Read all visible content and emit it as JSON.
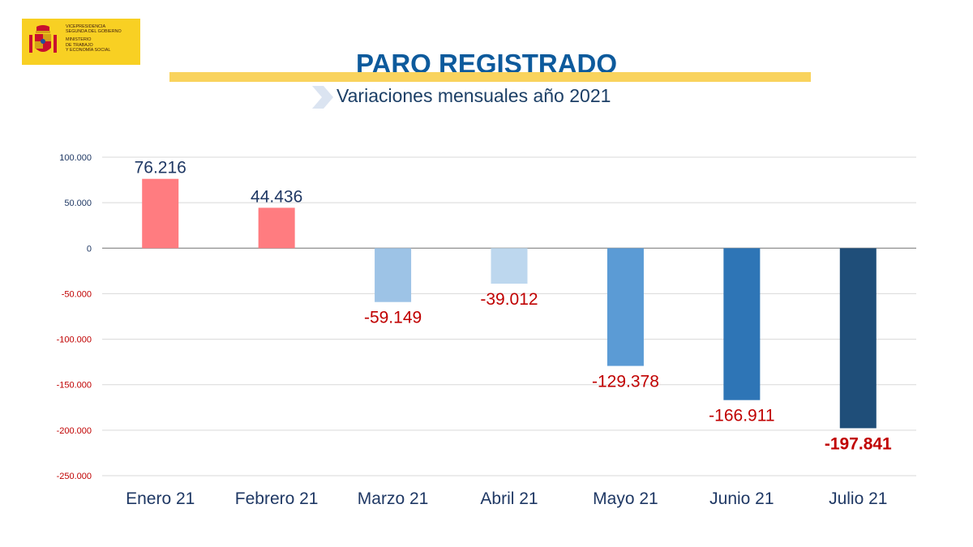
{
  "logo": {
    "lines_1": [
      "Vicepresidencia",
      "segunda del gobierno"
    ],
    "lines_2": [
      "Ministerio",
      "de trabajo",
      "y economía social"
    ]
  },
  "header": {
    "title": "PARO REGISTRADO",
    "subtitle": "Variaciones mensuales año 2021"
  },
  "colors": {
    "positive": "#ff7c80",
    "bars": [
      "#ff7c80",
      "#ff7c80",
      "#9dc3e6",
      "#bdd7ee",
      "#5b9bd5",
      "#2e75b6",
      "#1f4e79"
    ],
    "negative_text": "#c00000",
    "positive_text": "#1f3864",
    "axis_text": "#1f3864"
  },
  "chart_data": {
    "type": "bar",
    "title": "PARO REGISTRADO",
    "subtitle": "Variaciones mensuales año 2021",
    "categories": [
      "Enero 21",
      "Febrero 21",
      "Marzo 21",
      "Abril 21",
      "Mayo 21",
      "Junio 21",
      "Julio 21"
    ],
    "values": [
      76216,
      44436,
      -59149,
      -39012,
      -129378,
      -166911,
      -197841
    ],
    "data_labels": [
      "76.216",
      "44.436",
      "-59.149",
      "-39.012",
      "-129.378",
      "-166.911",
      "-197.841"
    ],
    "highlight_index": 6,
    "ylim": [
      -250000,
      100000
    ],
    "yticks": [
      100000,
      50000,
      0,
      -50000,
      -100000,
      -150000,
      -200000,
      -250000
    ],
    "ytick_labels": [
      "100.000",
      "50.000",
      "0",
      "-50.000",
      "-100.000",
      "-150.000",
      "-200.000",
      "-250.000"
    ],
    "grid": true,
    "legend": false
  }
}
